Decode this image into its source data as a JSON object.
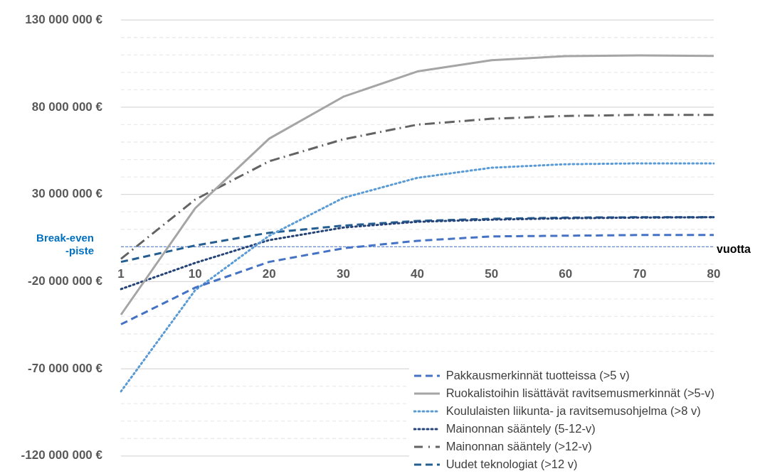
{
  "chart_data": {
    "type": "line",
    "xlabel": "vuotta",
    "categories": [
      "1",
      "10",
      "20",
      "30",
      "40",
      "50",
      "60",
      "70",
      "80"
    ],
    "ylim": [
      -120000000,
      130000000
    ],
    "yticks": [
      {
        "value": -120000000,
        "label": "-120 000 000 €"
      },
      {
        "value": -110000000,
        "label": null
      },
      {
        "value": -100000000,
        "label": null
      },
      {
        "value": -90000000,
        "label": null
      },
      {
        "value": -80000000,
        "label": null
      },
      {
        "value": -70000000,
        "label": "-70 000 000 €"
      },
      {
        "value": -60000000,
        "label": null
      },
      {
        "value": -50000000,
        "label": null
      },
      {
        "value": -40000000,
        "label": null
      },
      {
        "value": -30000000,
        "label": null
      },
      {
        "value": -20000000,
        "label": "-20 000 000 €"
      },
      {
        "value": -10000000,
        "label": null
      },
      {
        "value": 0,
        "label": null
      },
      {
        "value": 10000000,
        "label": null
      },
      {
        "value": 20000000,
        "label": null
      },
      {
        "value": 30000000,
        "label": "30 000 000 €"
      },
      {
        "value": 40000000,
        "label": null
      },
      {
        "value": 50000000,
        "label": null
      },
      {
        "value": 60000000,
        "label": null
      },
      {
        "value": 70000000,
        "label": null
      },
      {
        "value": 80000000,
        "label": "80 000 000 €"
      },
      {
        "value": 90000000,
        "label": null
      },
      {
        "value": 100000000,
        "label": null
      },
      {
        "value": 110000000,
        "label": null
      },
      {
        "value": 120000000,
        "label": null
      },
      {
        "value": 130000000,
        "label": "130 000 000 €"
      }
    ],
    "grid": "y",
    "legend": "bottom right",
    "marker": "none",
    "ref_lines": [
      {
        "axis": "y",
        "value": 0,
        "label": "Break-even\n-piste",
        "color": "#4472c4",
        "line_style": "dashed"
      }
    ],
    "series": [
      {
        "name": "Pakkausmerkinnät tuotteissa (>5 v)",
        "color": "#4472c4",
        "line_style": "dashed",
        "values": [
          -44500000,
          -23500000,
          -8700000,
          -900000,
          3400000,
          5900000,
          6300000,
          6700000,
          6700000
        ]
      },
      {
        "name": "Ruokalistoihin lisättävät ravitsemusmerkinnät (>5-v)",
        "color": "#a5a5a5",
        "line_style": "solid",
        "values": [
          -39000000,
          22000000,
          62000000,
          86000000,
          100500000,
          107000000,
          109300000,
          109700000,
          109400000
        ]
      },
      {
        "name": "Koululaisten liikunta- ja ravitsemusohjelma (>8 v)",
        "color": "#5b9bd5",
        "line_style": "dotted",
        "values": [
          -83000000,
          -25000000,
          6300000,
          28000000,
          39500000,
          45300000,
          47300000,
          47800000,
          47800000
        ]
      },
      {
        "name": "Mainonnan sääntely (5-12-v)",
        "color": "#264478",
        "line_style": "dotted",
        "values": [
          -24300000,
          -9300000,
          3800000,
          11000000,
          14300000,
          15500000,
          16300000,
          16700000,
          16900000
        ]
      },
      {
        "name": "Mainonnan sääntely (>12-v)",
        "color": "#636363",
        "line_style": "dashdot",
        "values": [
          -7000000,
          27000000,
          49000000,
          61600000,
          70000000,
          73400000,
          75000000,
          75600000,
          75600000
        ]
      },
      {
        "name": "Uudet teknologiat (>12 v)",
        "color": "#255e91",
        "line_style": "dashed",
        "values": [
          -8700000,
          700000,
          8000000,
          12100000,
          14800000,
          16000000,
          16700000,
          16900000,
          16900000
        ]
      }
    ]
  }
}
